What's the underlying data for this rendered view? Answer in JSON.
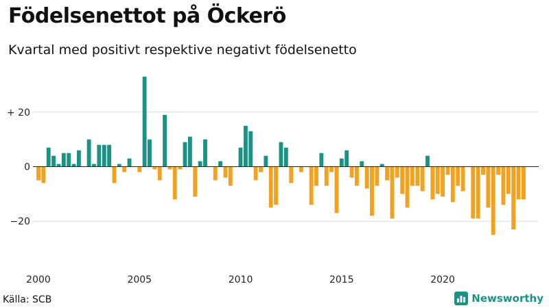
{
  "title": "Födelsenettot på Öckerö",
  "subtitle": "Kvartal med positivt respektive negativt födelsenetto",
  "source": "Källa: SCB",
  "brand": "Newsworthy",
  "brand_icon": "bar-chart-icon",
  "colors": {
    "positive": "#1a9384",
    "negative": "#f4a11d",
    "grid": "#dddddd",
    "zero": "#222222",
    "brand": "#1a9384"
  },
  "chart_data": {
    "type": "bar",
    "title": "Födelsenettot på Öckerö",
    "subtitle": "Kvartal med positivt respektive negativt födelsenetto",
    "xlabel": "",
    "ylabel": "",
    "ylim": [
      -38,
      36
    ],
    "xlim": [
      2000,
      2024.75
    ],
    "x_ticks": [
      2000,
      2005,
      2010,
      2015,
      2020
    ],
    "x_tick_labels": [
      "2000",
      "2005",
      "2010",
      "2015",
      "2020"
    ],
    "y_ticks": [
      20,
      0,
      -20
    ],
    "y_tick_labels": [
      "+ 20",
      "0",
      "−20"
    ],
    "grid": true,
    "x_start": 2000,
    "step": 0.25,
    "values": [
      -5,
      -6,
      7,
      4,
      1,
      5,
      5,
      1,
      6,
      0,
      10,
      1,
      8,
      8,
      8,
      -6,
      1,
      -2,
      3,
      0,
      -2,
      33,
      10,
      -1,
      -5,
      19,
      -1,
      -12,
      -1,
      9,
      11,
      -11,
      2,
      10,
      0,
      -5,
      2,
      -4,
      -7,
      0,
      7,
      15,
      13,
      -5,
      -2,
      4,
      -15,
      -14,
      9,
      7,
      -6,
      0,
      -2,
      0,
      -14,
      -7,
      5,
      -7,
      -2,
      -17,
      3,
      6,
      -4,
      -7,
      2,
      -8,
      -18,
      -7,
      1,
      -5,
      -19,
      -4,
      -10,
      -15,
      -7,
      -7,
      -9,
      4,
      -12,
      -10,
      -11,
      -3,
      -13,
      -7,
      -9,
      0,
      -19,
      -19,
      -3,
      -15,
      -25,
      -3,
      -14,
      -10,
      -23,
      -12,
      -12
    ]
  }
}
